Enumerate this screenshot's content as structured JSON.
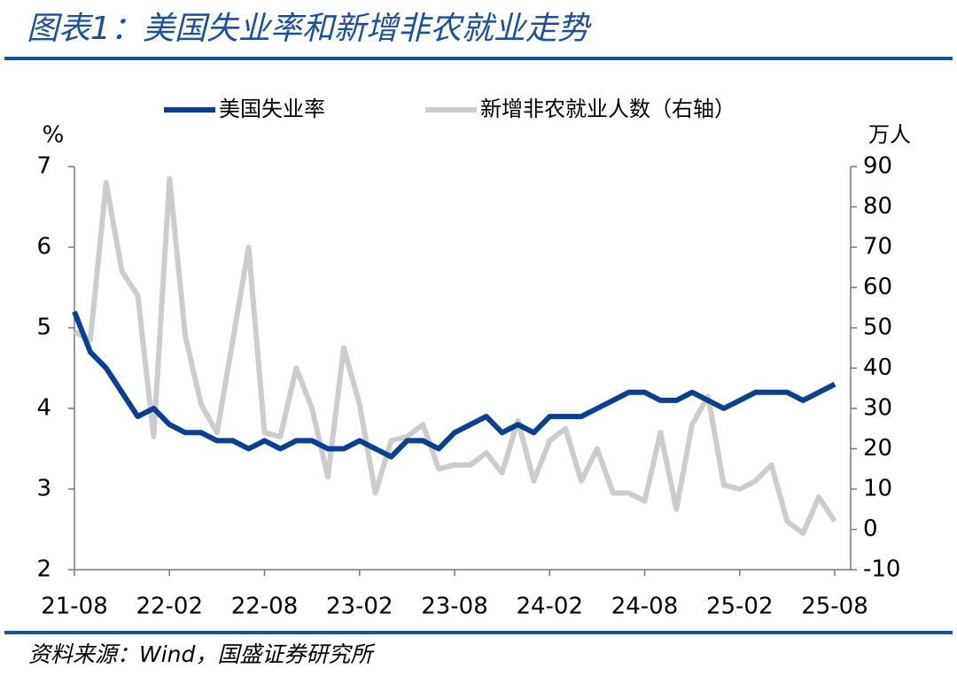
{
  "chart_data": {
    "type": "line",
    "title": "图表1：美国失业率和新增非农就业走势",
    "source": "资料来源：Wind，国盛证券研究所",
    "y_label": "%",
    "y2_label": "万人",
    "categories": [
      "21-08",
      null,
      null,
      null,
      null,
      null,
      "22-02",
      null,
      null,
      null,
      null,
      null,
      "22-08",
      null,
      null,
      null,
      null,
      null,
      "23-02",
      null,
      null,
      null,
      null,
      null,
      "23-08",
      null,
      null,
      null,
      null,
      null,
      "24-02",
      null,
      null,
      null,
      null,
      null,
      "24-08",
      null,
      null,
      null,
      null,
      null,
      "25-02",
      null,
      null,
      null,
      null,
      null,
      "25-08"
    ],
    "series": [
      {
        "name": "美国失业率",
        "color": "#0b3f93",
        "axis": "y",
        "values": [
          5.2,
          4.7,
          4.5,
          4.2,
          3.9,
          4.0,
          3.8,
          3.7,
          3.7,
          3.6,
          3.6,
          3.5,
          3.6,
          3.5,
          3.6,
          3.6,
          3.5,
          3.5,
          3.6,
          3.5,
          3.4,
          3.6,
          3.6,
          3.5,
          3.7,
          3.8,
          3.9,
          3.7,
          3.8,
          3.7,
          3.9,
          3.9,
          3.9,
          4.0,
          4.1,
          4.2,
          4.2,
          4.1,
          4.1,
          4.2,
          4.1,
          4.0,
          4.1,
          4.2,
          4.2,
          4.2,
          4.1,
          4.2,
          4.3
        ]
      },
      {
        "name": "新增非农就业人数（右轴）",
        "color": "#cccccc",
        "axis": "y2",
        "values": [
          49,
          47,
          86,
          64,
          58,
          23,
          87,
          48,
          31,
          24,
          47,
          70,
          24,
          23,
          40,
          30,
          13,
          45,
          31,
          9,
          22,
          23,
          26,
          15,
          16,
          16,
          19,
          14,
          27,
          12,
          22,
          25,
          12,
          20,
          9,
          9,
          7,
          24,
          5,
          26,
          33,
          11,
          10,
          12,
          16,
          2,
          -1,
          8,
          2
        ]
      }
    ],
    "ylim": [
      2,
      7
    ],
    "yticks": [
      2,
      3,
      4,
      5,
      6,
      7
    ],
    "y2lim": [
      -10,
      90
    ],
    "y2ticks": [
      -10,
      0,
      10,
      20,
      30,
      40,
      50,
      60,
      70,
      80,
      90
    ],
    "legend": "top"
  }
}
